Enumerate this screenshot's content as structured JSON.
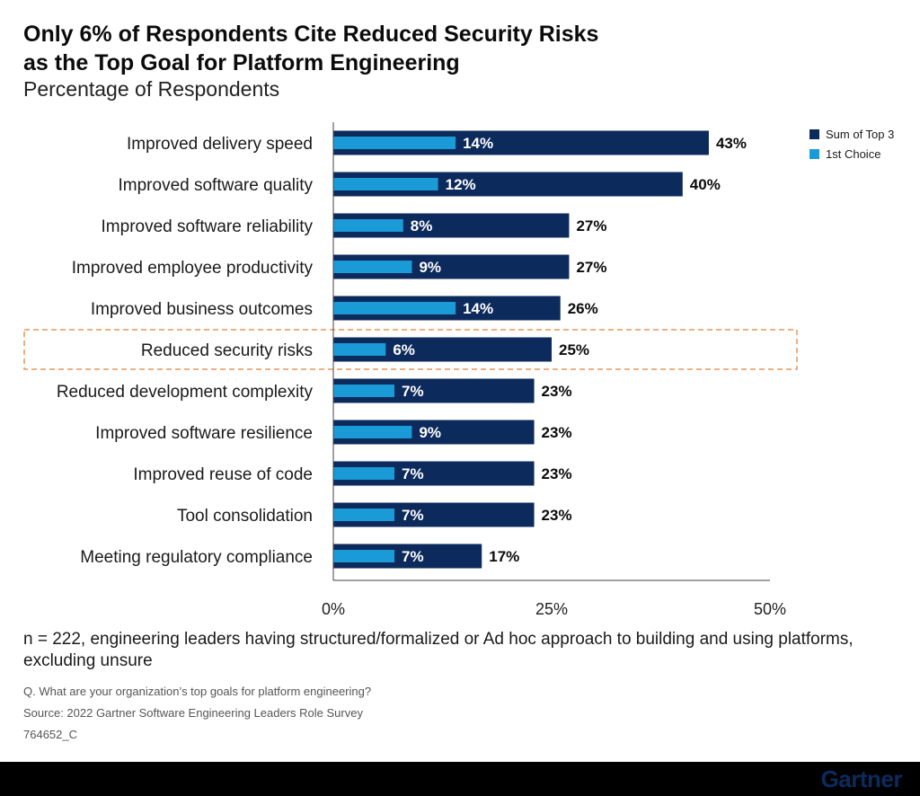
{
  "title": {
    "line1": "Only 6% of Respondents Cite Reduced Security Risks",
    "line2": "as the Top Goal for Platform Engineering"
  },
  "subtitle": "Percentage of Respondents",
  "colors": {
    "sum_top3": "#0d2a5c",
    "first_choice": "#1a9ad6",
    "highlight_border": "#e8955a",
    "first_label": "#ffffff",
    "sum_label": "#0b0b0b"
  },
  "legend": {
    "sum_top3": "Sum of Top 3",
    "first_choice": "1st Choice"
  },
  "chart_data": {
    "type": "bar",
    "orientation": "horizontal",
    "categories": [
      "Improved delivery speed",
      "Improved software quality",
      "Improved software reliability",
      "Improved employee productivity",
      "Improved business outcomes",
      "Reduced security risks",
      "Reduced development complexity",
      "Improved software resilience",
      "Improved reuse of code",
      "Tool consolidation",
      "Meeting regulatory compliance"
    ],
    "series": [
      {
        "name": "Sum of Top 3",
        "values": [
          43,
          40,
          27,
          27,
          26,
          25,
          23,
          23,
          23,
          23,
          17
        ]
      },
      {
        "name": "1st Choice",
        "values": [
          14,
          12,
          8,
          9,
          14,
          6,
          7,
          9,
          7,
          7,
          7
        ]
      }
    ],
    "highlight_category": "Reduced security risks",
    "xlim": [
      0,
      50
    ],
    "xticks": [
      "0%",
      "25%",
      "50%"
    ],
    "legend_position": "top-right",
    "grid": false
  },
  "note": "n = 222, engineering leaders having structured/formalized or Ad hoc approach to building and using platforms, excluding unsure",
  "question": "Q. What are your organization’s top goals for platform engineering?",
  "source": "Source: 2022 Gartner Software Engineering Leaders Role Survey",
  "doc_id": "764652_C",
  "brand": "Gartner"
}
